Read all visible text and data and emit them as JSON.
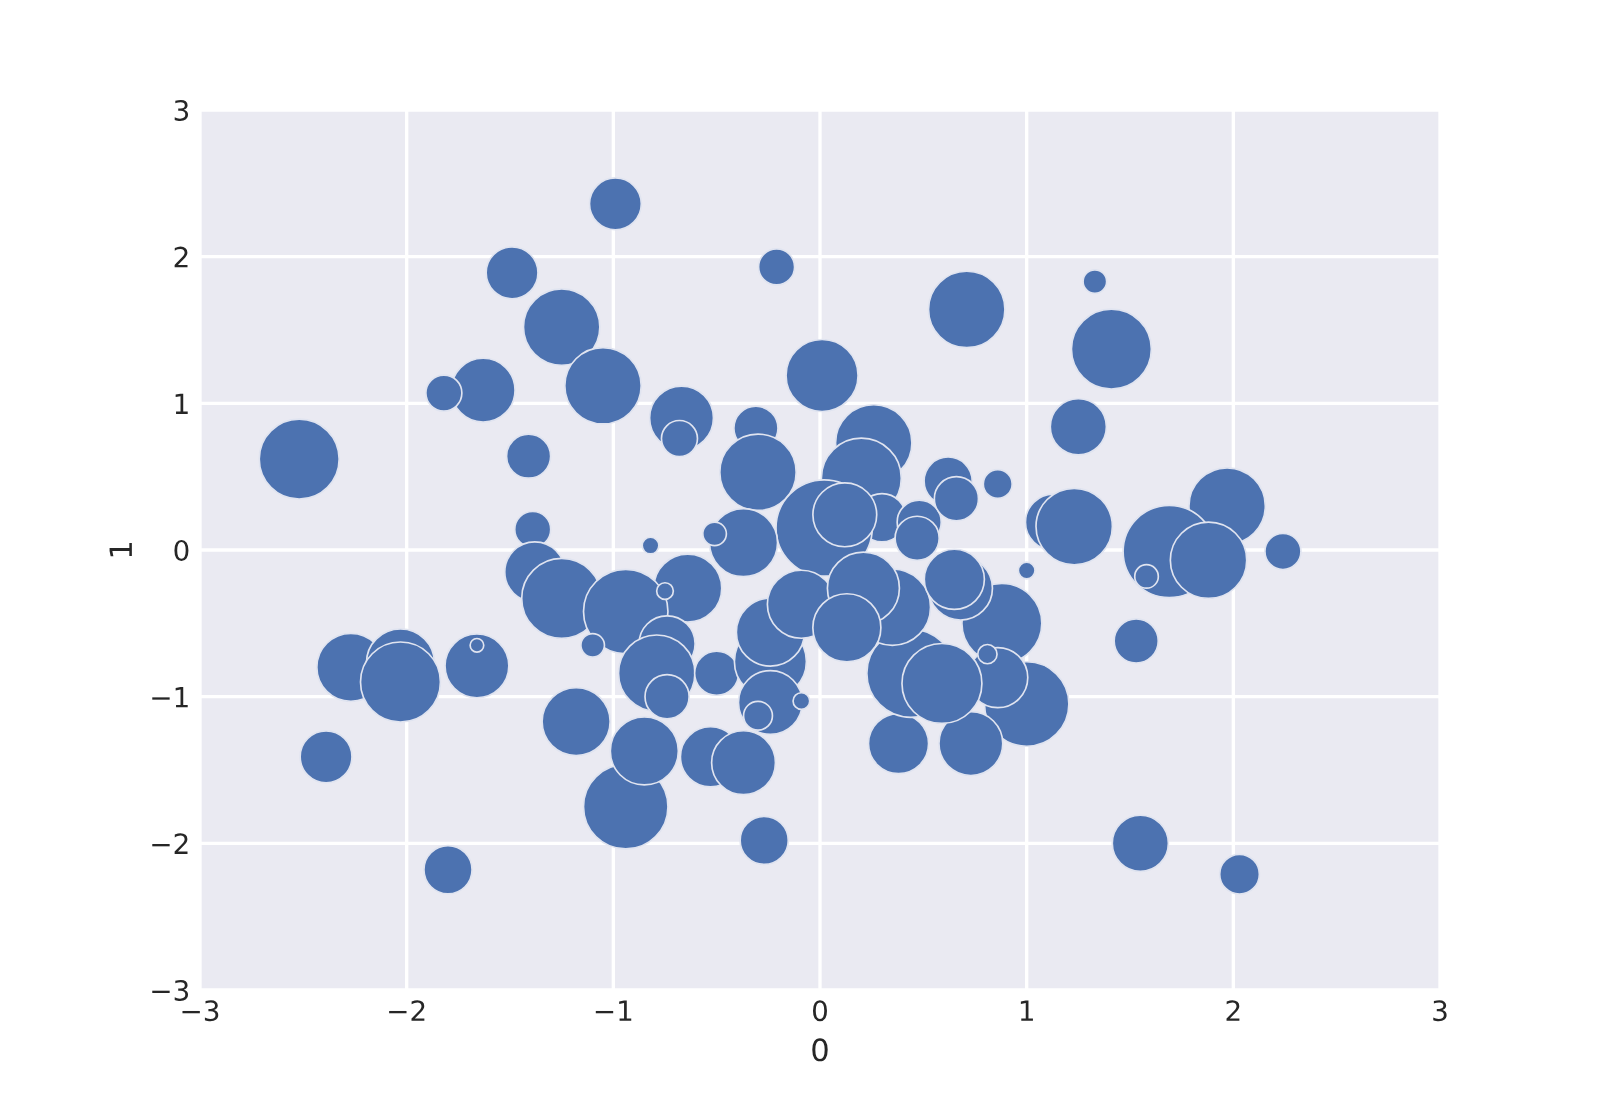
{
  "chart_data": {
    "type": "bubble",
    "xlabel": "0",
    "ylabel": "1",
    "grid": true,
    "marker": "circle",
    "xlim": [
      -3,
      3
    ],
    "ylim": [
      -3,
      3
    ],
    "xticks": [
      {
        "value": -3,
        "label": "−3"
      },
      {
        "value": -2,
        "label": "−2"
      },
      {
        "value": -1,
        "label": "−1"
      },
      0,
      1,
      2,
      3
    ],
    "yticks": [
      {
        "value": -3,
        "label": "−3"
      },
      {
        "value": -2,
        "label": "−2"
      },
      {
        "value": -1,
        "label": "−1"
      },
      0,
      1,
      2,
      3
    ],
    "series": [
      {
        "color": "#4c72b0",
        "x": [
          -0.99,
          -1.49,
          -1.25,
          -0.21,
          0.71,
          1.33,
          1.41,
          -1.05,
          -1.63,
          -1.82,
          0.01,
          -0.67,
          -0.68,
          -2.52,
          -1.41,
          -0.31,
          1.25,
          0.26,
          -0.3,
          0.2,
          0.62,
          0.86,
          0.3,
          0.02,
          0.12,
          0.48,
          0.66,
          1.13,
          1.23,
          1.97,
          2.24,
          1.69,
          1.88,
          1.58,
          1.0,
          -0.37,
          -0.51,
          -0.82,
          -1.39,
          -1.38,
          -1.25,
          -0.64,
          -0.94,
          -1.1,
          -1.66,
          -2.27,
          -2.03,
          -2.03,
          -2.39,
          -1.8,
          -1.18,
          -0.94,
          -0.85,
          -0.74,
          -0.79,
          -0.74,
          -0.5,
          -0.24,
          -0.24,
          -0.09,
          -0.24,
          -0.3,
          -0.53,
          -0.37,
          -0.27,
          1.53,
          1.55,
          2.03,
          1.0,
          0.88,
          0.86,
          0.81,
          0.73,
          0.38,
          0.44,
          0.59,
          0.35,
          0.21,
          0.68,
          0.65,
          0.13,
          -0.09,
          0.47,
          -0.75,
          -1.66
        ],
        "values": [
          2.36,
          1.89,
          1.52,
          1.93,
          1.64,
          1.83,
          1.37,
          1.12,
          1.09,
          1.07,
          1.19,
          0.9,
          0.76,
          0.62,
          0.64,
          0.83,
          0.84,
          0.73,
          0.53,
          0.49,
          0.47,
          0.45,
          0.22,
          0.15,
          0.24,
          0.19,
          0.35,
          0.19,
          0.16,
          0.3,
          -0.01,
          -0.01,
          -0.07,
          -0.18,
          -0.14,
          0.05,
          0.11,
          0.03,
          0.14,
          -0.15,
          -0.33,
          -0.26,
          -0.42,
          -0.65,
          -0.79,
          -0.8,
          -0.77,
          -0.9,
          -1.41,
          -2.18,
          -1.17,
          -1.75,
          -1.37,
          -0.64,
          -0.84,
          -1.0,
          -0.84,
          -0.76,
          -0.56,
          -0.37,
          -1.04,
          -1.13,
          -1.41,
          -1.45,
          -1.98,
          -0.62,
          -2.0,
          -2.21,
          -1.05,
          -0.5,
          -0.87,
          -0.71,
          -1.32,
          -1.32,
          -0.84,
          -0.91,
          -0.39,
          -0.26,
          -0.26,
          -0.2,
          -0.53,
          -1.03,
          0.08,
          -0.28,
          -0.65
        ],
        "sizes": [
          0.29,
          0.29,
          0.63,
          0.14,
          0.63,
          0.06,
          0.69,
          0.63,
          0.44,
          0.14,
          0.56,
          0.44,
          0.14,
          0.69,
          0.21,
          0.21,
          0.34,
          0.63,
          0.63,
          0.69,
          0.25,
          0.09,
          0.25,
          1.0,
          0.44,
          0.21,
          0.21,
          0.34,
          0.63,
          0.63,
          0.14,
          0.92,
          0.63,
          0.06,
          0.03,
          0.5,
          0.06,
          0.03,
          0.14,
          0.39,
          0.69,
          0.5,
          0.77,
          0.06,
          0.44,
          0.5,
          0.5,
          0.69,
          0.29,
          0.25,
          0.5,
          0.77,
          0.5,
          0.34,
          0.63,
          0.21,
          0.21,
          0.56,
          0.5,
          0.5,
          0.44,
          0.09,
          0.39,
          0.44,
          0.25,
          0.21,
          0.34,
          0.17,
          0.77,
          0.69,
          0.39,
          0.04,
          0.44,
          0.39,
          0.84,
          0.69,
          0.63,
          0.56,
          0.44,
          0.39,
          0.5,
          0.03,
          0.21,
          0.03,
          0.02
        ]
      }
    ]
  }
}
